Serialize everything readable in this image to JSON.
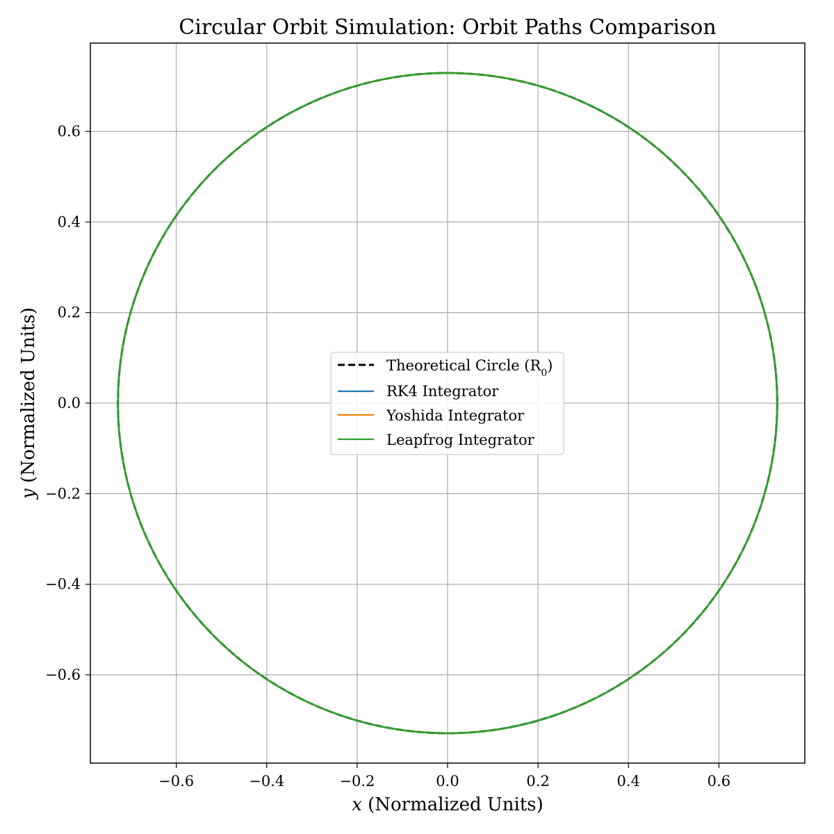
{
  "chart_data": {
    "type": "line",
    "title": "Circular Orbit Simulation: Orbit Paths Comparison",
    "xlabel": "x (Normalized Units)",
    "ylabel": "y (Normalized Units)",
    "xlim": [
      -0.79,
      0.79
    ],
    "ylim": [
      -0.795,
      0.795
    ],
    "xticks": [
      -0.6,
      -0.4,
      -0.2,
      0.0,
      0.2,
      0.4,
      0.6
    ],
    "yticks": [
      -0.6,
      -0.4,
      -0.2,
      0.0,
      0.2,
      0.4,
      0.6
    ],
    "xtick_labels": [
      "−0.6",
      "−0.4",
      "−0.2",
      "0.0",
      "0.2",
      "0.4",
      "0.6"
    ],
    "ytick_labels": [
      "−0.6",
      "−0.4",
      "−0.2",
      "0.0",
      "0.2",
      "0.4",
      "0.6"
    ],
    "grid": true,
    "legend_position": "center",
    "series": [
      {
        "name": "Theoretical Circle (R0)",
        "color": "#000000",
        "style": "dashed",
        "shape": "circle",
        "radius": 0.729,
        "center": [
          0.0,
          0.0
        ]
      },
      {
        "name": "RK4 Integrator",
        "color": "#1f77b4",
        "style": "solid",
        "shape": "circle",
        "radius": 0.729,
        "center": [
          0.0,
          0.0
        ]
      },
      {
        "name": "Yoshida Integrator",
        "color": "#ff7f0e",
        "style": "solid",
        "shape": "circle",
        "radius": 0.729,
        "center": [
          0.0,
          0.0
        ]
      },
      {
        "name": "Leapfrog Integrator",
        "color": "#2ca02c",
        "style": "solid",
        "shape": "circle",
        "radius": 0.729,
        "center": [
          0.0,
          0.0
        ]
      }
    ],
    "legend": [
      {
        "label": "Theoretical Circle (R",
        "sub": "0",
        "suffix": ")"
      },
      {
        "label": "RK4 Integrator"
      },
      {
        "label": "Yoshida Integrator"
      },
      {
        "label": "Leapfrog Integrator"
      }
    ]
  }
}
